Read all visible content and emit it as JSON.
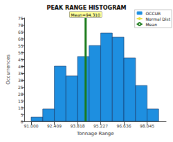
{
  "chart_data": {
    "type": "histogram",
    "title": "PEAK RANGE HISTOGRAM",
    "x_label": "Tonnage Range",
    "y_label": "Occurrences",
    "bins": [
      91.0,
      91.7045,
      92.409,
      93.1135,
      93.818,
      94.5225,
      95.227,
      95.9315,
      96.636,
      97.3405,
      98.045,
      98.7495
    ],
    "series": [
      {
        "name": "OCCUR",
        "color": "#1e8fe0",
        "values": [
          3,
          9,
          40,
          33,
          47,
          55,
          64,
          61,
          46,
          26,
          9
        ]
      }
    ],
    "normal_dist": {
      "name": "Normal Dist",
      "color": "#e8e040"
    },
    "mean": {
      "name": "Mean",
      "value": 94.31,
      "label": "Mean=94.310",
      "color": "#1a7a1a"
    },
    "xlim": [
      90.6,
      99.2
    ],
    "xticks": [
      {
        "value": 91.0,
        "label": "91.000"
      },
      {
        "value": 92.409,
        "label": "92.409"
      },
      {
        "value": 93.818,
        "label": "93.818"
      },
      {
        "value": 95.227,
        "label": "95.227"
      },
      {
        "value": 96.636,
        "label": "96.636"
      },
      {
        "value": 98.045,
        "label": "98.045"
      }
    ],
    "ylim": [
      0,
      75
    ],
    "yticks": [
      0,
      5,
      10,
      15,
      20,
      25,
      30,
      35,
      40,
      45,
      50,
      55,
      60,
      65,
      70,
      75
    ],
    "grid": false,
    "legend": "top-right"
  }
}
